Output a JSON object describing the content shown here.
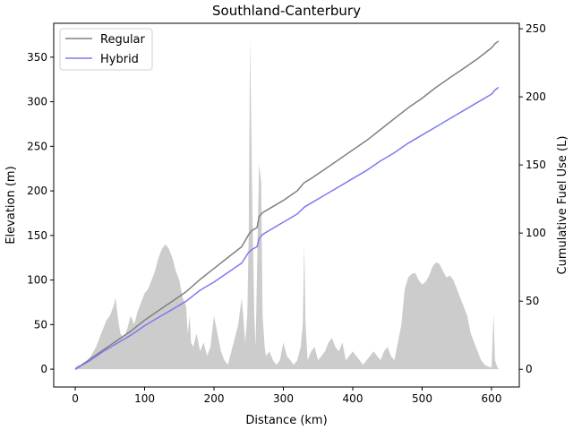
{
  "chart_data": {
    "type": "line",
    "title": "Southland-Canterbury",
    "xlabel": "Distance (km)",
    "ylabel": "Elevation (m)",
    "y2label": "Cumulative Fuel Use (L)",
    "xlim": [
      -31,
      640
    ],
    "ylim": [
      -20,
      388
    ],
    "y2lim": [
      -13,
      254
    ],
    "xticks": [
      0,
      100,
      200,
      300,
      400,
      500,
      600
    ],
    "yticks": [
      0,
      50,
      100,
      150,
      200,
      250,
      300,
      350
    ],
    "y2ticks": [
      0,
      50,
      100,
      150,
      200,
      250
    ],
    "legend_position": "top-left",
    "elevation": {
      "color": "#cccccc",
      "x": [
        0,
        5,
        10,
        15,
        20,
        25,
        30,
        35,
        40,
        45,
        50,
        55,
        58,
        62,
        65,
        70,
        75,
        80,
        85,
        90,
        95,
        100,
        105,
        110,
        115,
        120,
        125,
        130,
        135,
        140,
        145,
        150,
        155,
        160,
        162,
        165,
        167,
        170,
        175,
        180,
        185,
        190,
        195,
        200,
        205,
        210,
        215,
        220,
        225,
        230,
        235,
        240,
        245,
        248,
        250,
        252,
        255,
        258,
        260,
        263,
        265,
        268,
        270,
        273,
        275,
        280,
        285,
        290,
        295,
        300,
        305,
        310,
        315,
        320,
        325,
        328,
        330,
        332,
        335,
        340,
        345,
        350,
        355,
        360,
        365,
        370,
        375,
        380,
        385,
        390,
        395,
        400,
        405,
        410,
        415,
        420,
        425,
        430,
        435,
        440,
        445,
        450,
        455,
        460,
        465,
        470,
        475,
        480,
        485,
        490,
        495,
        500,
        505,
        510,
        515,
        520,
        525,
        530,
        535,
        540,
        545,
        550,
        555,
        560,
        565,
        570,
        575,
        580,
        585,
        590,
        595,
        600,
        603,
        605,
        608,
        610
      ],
      "y": [
        2,
        5,
        3,
        8,
        12,
        18,
        25,
        35,
        45,
        55,
        60,
        70,
        80,
        55,
        40,
        35,
        45,
        60,
        50,
        65,
        75,
        85,
        90,
        100,
        110,
        125,
        135,
        140,
        135,
        125,
        110,
        100,
        80,
        70,
        40,
        60,
        30,
        25,
        40,
        20,
        30,
        15,
        25,
        60,
        40,
        20,
        10,
        5,
        20,
        35,
        50,
        80,
        30,
        60,
        150,
        372,
        200,
        60,
        25,
        150,
        230,
        210,
        60,
        25,
        15,
        20,
        10,
        5,
        10,
        30,
        15,
        10,
        5,
        10,
        25,
        50,
        140,
        50,
        10,
        20,
        25,
        10,
        15,
        20,
        30,
        35,
        25,
        20,
        30,
        10,
        15,
        20,
        15,
        10,
        5,
        10,
        15,
        20,
        15,
        10,
        20,
        25,
        15,
        10,
        30,
        50,
        90,
        103,
        107,
        108,
        100,
        95,
        98,
        105,
        115,
        120,
        118,
        110,
        103,
        105,
        100,
        90,
        80,
        70,
        60,
        40,
        30,
        20,
        10,
        5,
        3,
        2,
        62,
        10,
        3,
        1
      ]
    },
    "series": [
      {
        "name": "Regular",
        "axis": "right",
        "color": "#808080",
        "x": [
          0,
          20,
          40,
          60,
          80,
          100,
          120,
          140,
          160,
          180,
          200,
          220,
          240,
          250,
          255,
          262,
          265,
          270,
          280,
          300,
          320,
          330,
          340,
          360,
          380,
          400,
          420,
          440,
          460,
          480,
          500,
          520,
          540,
          560,
          580,
          600,
          605,
          610
        ],
        "values": [
          0,
          7,
          14,
          21,
          28,
          36,
          43,
          50,
          57,
          66,
          74,
          82,
          90,
          99,
          102,
          104,
          112,
          115,
          118,
          124,
          131,
          137,
          140,
          147,
          154,
          161,
          168,
          176,
          184,
          192,
          199,
          207,
          214,
          221,
          228,
          236,
          239,
          241
        ]
      },
      {
        "name": "Hybrid",
        "axis": "right",
        "color": "#7b7bf0",
        "x": [
          0,
          20,
          40,
          60,
          80,
          100,
          120,
          140,
          160,
          180,
          200,
          220,
          240,
          250,
          255,
          262,
          265,
          270,
          280,
          300,
          320,
          330,
          340,
          360,
          380,
          400,
          420,
          440,
          460,
          480,
          500,
          520,
          540,
          560,
          580,
          600,
          605,
          610
        ],
        "values": [
          0,
          6,
          13,
          19,
          25,
          32,
          38,
          44,
          50,
          58,
          64,
          71,
          78,
          86,
          88,
          90,
          96,
          99,
          102,
          108,
          114,
          119,
          122,
          128,
          134,
          140,
          146,
          153,
          159,
          166,
          172,
          178,
          184,
          190,
          196,
          202,
          205,
          207
        ]
      }
    ]
  }
}
